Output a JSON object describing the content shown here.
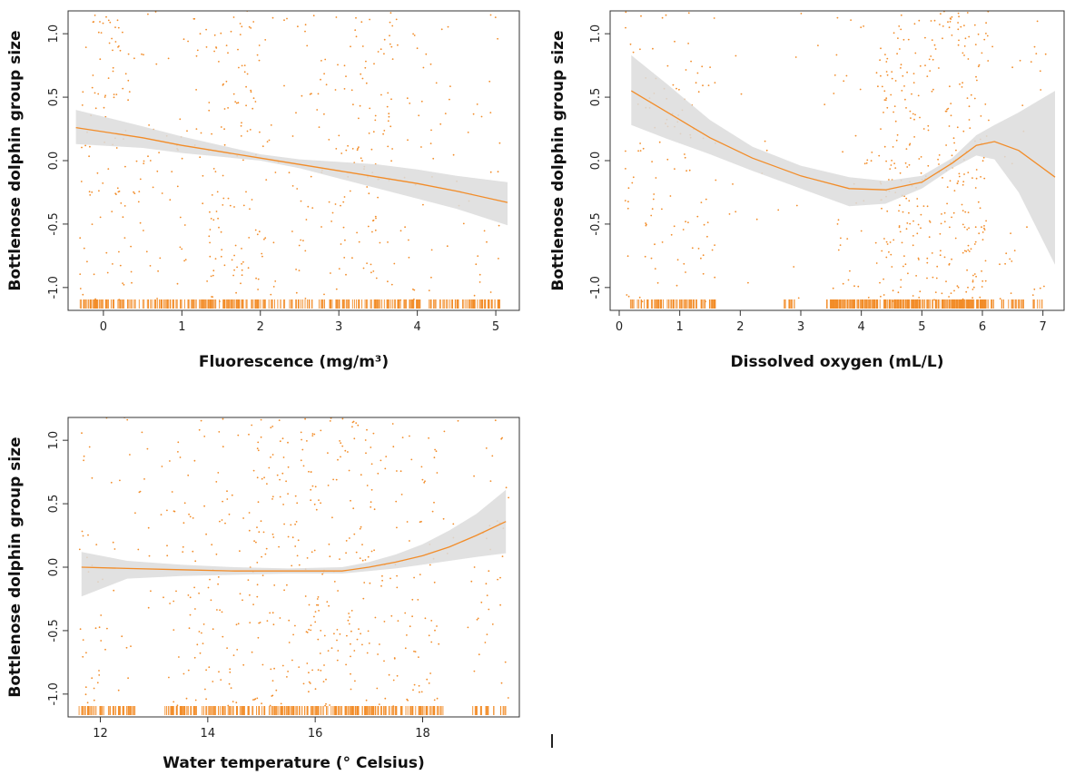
{
  "colors": {
    "accent": "#f28c28",
    "band": "#dcdcdc",
    "axis": "#333333"
  },
  "chart_data": [
    {
      "type": "scatter",
      "xlabel": "Fluorescence (mg/m³)",
      "ylabel": "Bottlenose dolphin group size",
      "xticks": [
        "0",
        "1",
        "2",
        "3",
        "4",
        "5"
      ],
      "yticks": [
        "-1.0",
        "-0.5",
        "0.0",
        "0.5",
        "1.0"
      ],
      "xlim": [
        -0.45,
        5.3
      ],
      "ylim": [
        -1.18,
        1.18
      ],
      "grid": false,
      "rug": true,
      "smooth": {
        "x": [
          -0.35,
          0.5,
          1.0,
          1.5,
          2.0,
          2.5,
          3.0,
          3.5,
          4.0,
          4.5,
          5.15
        ],
        "y": [
          0.26,
          0.18,
          0.12,
          0.07,
          0.02,
          -0.03,
          -0.08,
          -0.13,
          -0.18,
          -0.24,
          -0.33
        ],
        "upper": [
          0.4,
          0.27,
          0.19,
          0.12,
          0.05,
          0.01,
          -0.01,
          -0.03,
          -0.07,
          -0.12,
          -0.17
        ],
        "lower": [
          0.13,
          0.1,
          0.06,
          0.03,
          0.0,
          -0.06,
          -0.14,
          -0.22,
          -0.3,
          -0.38,
          -0.51
        ]
      }
    },
    {
      "type": "scatter",
      "xlabel": "Dissolved oxygen (mL/L)",
      "ylabel": "Bottlenose dolphin group size",
      "xticks": [
        "0",
        "1",
        "2",
        "3",
        "4",
        "5",
        "6",
        "7"
      ],
      "yticks": [
        "-1.0",
        "-0.5",
        "0.0",
        "0.5",
        "1.0"
      ],
      "xlim": [
        -0.15,
        7.35
      ],
      "ylim": [
        -1.18,
        1.18
      ],
      "grid": false,
      "rug": true,
      "smooth": {
        "x": [
          0.2,
          0.8,
          1.5,
          2.2,
          3.0,
          3.8,
          4.4,
          5.0,
          5.5,
          5.9,
          6.2,
          6.6,
          7.2
        ],
        "y": [
          0.55,
          0.38,
          0.18,
          0.02,
          -0.12,
          -0.22,
          -0.23,
          -0.17,
          -0.02,
          0.12,
          0.15,
          0.08,
          -0.13
        ],
        "upper": [
          0.83,
          0.6,
          0.32,
          0.11,
          -0.04,
          -0.13,
          -0.16,
          -0.12,
          0.02,
          0.2,
          0.28,
          0.38,
          0.55
        ],
        "lower": [
          0.28,
          0.17,
          0.05,
          -0.08,
          -0.22,
          -0.36,
          -0.34,
          -0.22,
          -0.06,
          0.04,
          0.01,
          -0.25,
          -0.82
        ]
      }
    },
    {
      "type": "scatter",
      "xlabel": "Water temperature (° Celsius)",
      "ylabel": "Bottlenose dolphin group size",
      "xticks": [
        "12",
        "14",
        "16",
        "18"
      ],
      "yticks": [
        "-1.0",
        "-0.5",
        "0.0",
        "0.5",
        "1.0"
      ],
      "xlim": [
        11.4,
        19.8
      ],
      "ylim": [
        -1.18,
        1.18
      ],
      "grid": false,
      "rug": true,
      "smooth": {
        "x": [
          11.65,
          12.5,
          13.5,
          14.5,
          15.5,
          16.5,
          17.0,
          17.5,
          18.0,
          18.5,
          19.0,
          19.55
        ],
        "y": [
          0.0,
          -0.01,
          -0.02,
          -0.03,
          -0.03,
          -0.03,
          0.0,
          0.04,
          0.09,
          0.16,
          0.25,
          0.36
        ],
        "upper": [
          0.12,
          0.05,
          0.02,
          0.0,
          -0.01,
          0.0,
          0.04,
          0.1,
          0.18,
          0.29,
          0.42,
          0.61
        ],
        "lower": [
          -0.23,
          -0.09,
          -0.07,
          -0.06,
          -0.05,
          -0.05,
          -0.03,
          -0.01,
          0.02,
          0.05,
          0.08,
          0.11
        ]
      }
    }
  ]
}
